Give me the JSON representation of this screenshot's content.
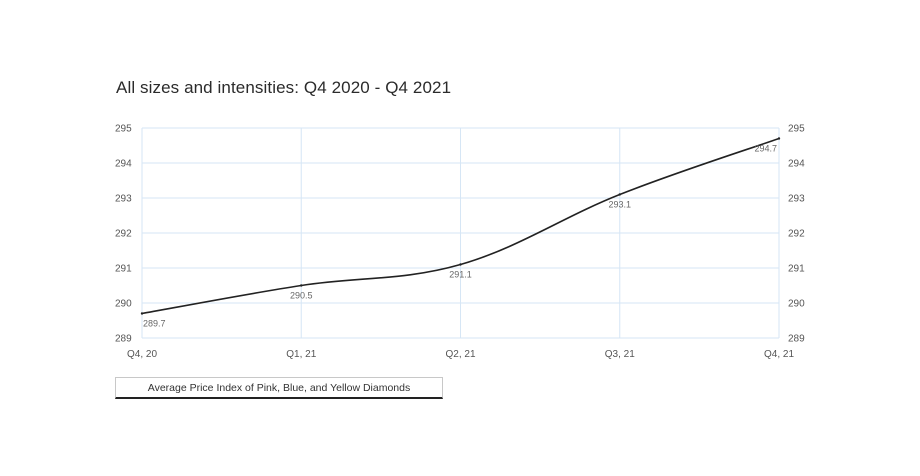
{
  "chart_data": {
    "type": "line",
    "title": "All sizes and intensities: Q4 2020 - Q4 2021",
    "categories": [
      "Q4, 20",
      "Q1, 21",
      "Q2, 21",
      "Q3, 21",
      "Q4, 21"
    ],
    "series": [
      {
        "name": "Average Price Index of Pink, Blue, and Yellow Diamonds",
        "values": [
          289.7,
          290.5,
          291.1,
          293.1,
          294.7
        ],
        "labels": [
          "289.7",
          "290.5",
          "291.1",
          "293.1",
          "294.7"
        ],
        "color": "#222222"
      }
    ],
    "ylim": [
      289,
      295
    ],
    "yticks": [
      "289",
      "290",
      "291",
      "292",
      "293",
      "294",
      "295"
    ],
    "secondary_yaxis": true,
    "grid": true,
    "grid_color": "#d6e6f5",
    "legend": "bottom-left"
  }
}
